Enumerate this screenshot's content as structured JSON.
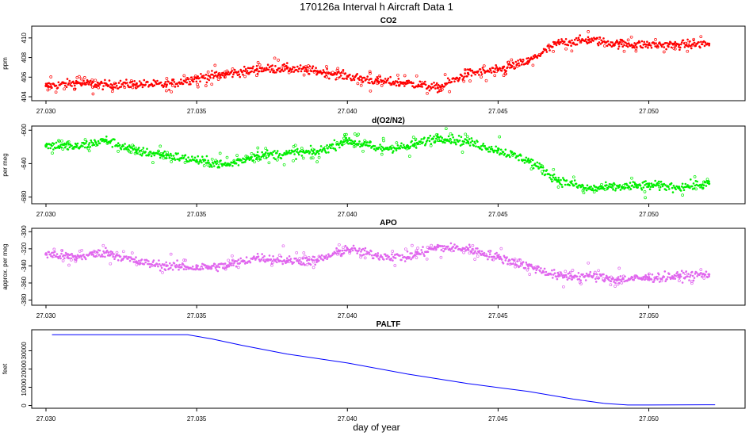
{
  "title": "170126a   Interval h Aircraft Data 1",
  "xlabel": "day of year",
  "chart_data": [
    {
      "type": "scatter",
      "title": "CO2",
      "ylabel": "ppm",
      "xlim": [
        27.03,
        27.0523
      ],
      "ylim": [
        403.6,
        411.2
      ],
      "xticks": [
        "27.030",
        "27.035",
        "27.040",
        "27.045",
        "27.050"
      ],
      "yticks": [
        "404",
        "406",
        "408",
        "410"
      ],
      "color": "#ff0000",
      "series": [
        {
          "x": [
            27.03,
            27.031,
            27.032,
            27.033,
            27.034,
            27.035,
            27.036,
            27.037,
            27.038,
            27.039,
            27.04,
            27.041,
            27.042,
            27.043,
            27.044,
            27.045,
            27.046,
            27.047,
            27.048,
            27.049,
            27.05,
            27.051,
            27.052
          ],
          "y": [
            405.1,
            405.4,
            405.2,
            405.3,
            405.2,
            405.9,
            406.3,
            406.8,
            406.9,
            406.6,
            406.1,
            405.6,
            405.4,
            404.9,
            406.4,
            406.7,
            407.6,
            409.5,
            409.8,
            409.4,
            409.3,
            409.3,
            409.4
          ]
        }
      ]
    },
    {
      "type": "scatter",
      "title": "d(O2/N2)",
      "ylabel": "per meg",
      "xlim": [
        27.03,
        27.0523
      ],
      "ylim": [
        -688,
        -595
      ],
      "xticks": [
        "27.030",
        "27.035",
        "27.040",
        "27.045",
        "27.050"
      ],
      "yticks": [
        "-600",
        "-640",
        "-680"
      ],
      "color": "#00ee00",
      "series": [
        {
          "x": [
            27.03,
            27.031,
            27.032,
            27.033,
            27.034,
            27.035,
            27.036,
            27.037,
            27.038,
            27.039,
            27.04,
            27.041,
            27.042,
            27.043,
            27.044,
            27.045,
            27.046,
            27.047,
            27.048,
            27.049,
            27.05,
            27.051,
            27.052
          ],
          "y": [
            -618,
            -620,
            -612,
            -625,
            -630,
            -636,
            -642,
            -630,
            -628,
            -626,
            -612,
            -622,
            -620,
            -608,
            -614,
            -624,
            -636,
            -660,
            -670,
            -668,
            -666,
            -668,
            -664
          ]
        }
      ]
    },
    {
      "type": "scatter",
      "title": "APO",
      "ylabel": "approx. per meg",
      "xlim": [
        27.03,
        27.0523
      ],
      "ylim": [
        -386,
        -296
      ],
      "xticks": [
        "27.030",
        "27.035",
        "27.040",
        "27.045",
        "27.050"
      ],
      "yticks": [
        "-300",
        "-320",
        "-340",
        "-360",
        "-380"
      ],
      "color": "#e066ee",
      "series": [
        {
          "x": [
            27.03,
            27.031,
            27.032,
            27.033,
            27.034,
            27.035,
            27.036,
            27.037,
            27.038,
            27.039,
            27.04,
            27.041,
            27.042,
            27.043,
            27.044,
            27.045,
            27.046,
            27.047,
            27.048,
            27.049,
            27.05,
            27.051,
            27.052
          ],
          "y": [
            -326,
            -330,
            -324,
            -335,
            -340,
            -342,
            -340,
            -330,
            -334,
            -334,
            -320,
            -328,
            -330,
            -318,
            -320,
            -330,
            -340,
            -352,
            -352,
            -356,
            -354,
            -352,
            -350
          ]
        }
      ]
    },
    {
      "type": "line",
      "title": "PALTF",
      "ylabel": "feet",
      "xlim": [
        27.03,
        27.0523
      ],
      "ylim": [
        -1500,
        41500
      ],
      "xticks": [
        "27.030",
        "27.035",
        "27.040",
        "27.045",
        "27.050"
      ],
      "yticks": [
        "0",
        "10000",
        "20000",
        "30000"
      ],
      "color": "#0000ff",
      "series": [
        {
          "x": [
            27.0302,
            27.0347,
            27.0355,
            27.0365,
            27.038,
            27.04,
            27.042,
            27.044,
            27.046,
            27.0475,
            27.0485,
            27.0493,
            27.05,
            27.0522
          ],
          "y": [
            38800,
            38800,
            36500,
            33000,
            28200,
            23300,
            17200,
            12000,
            7700,
            3500,
            1200,
            300,
            300,
            400
          ]
        }
      ]
    }
  ]
}
